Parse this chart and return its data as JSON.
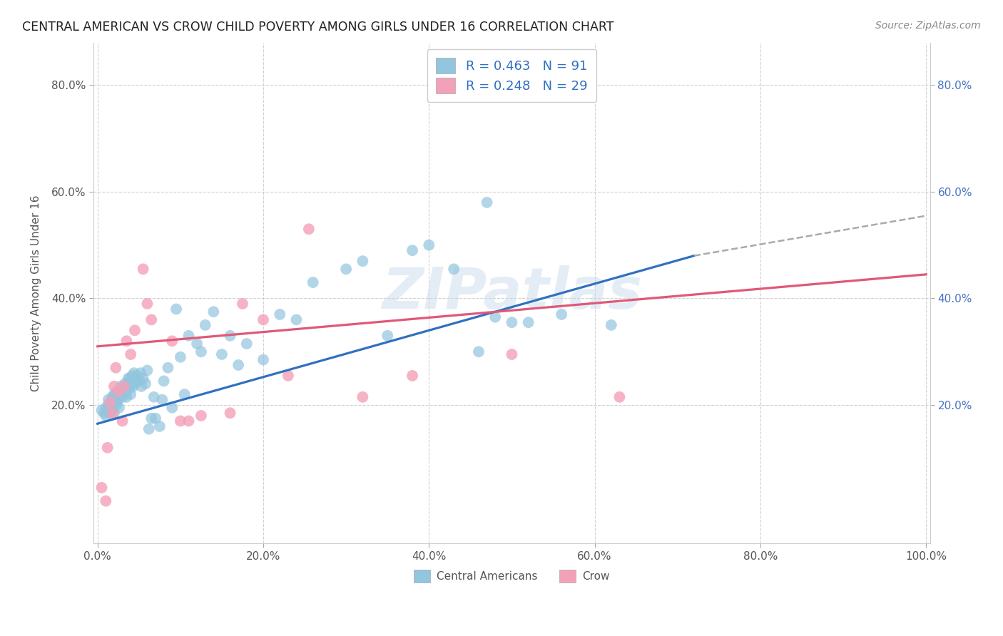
{
  "title": "CENTRAL AMERICAN VS CROW CHILD POVERTY AMONG GIRLS UNDER 16 CORRELATION CHART",
  "source": "Source: ZipAtlas.com",
  "ylabel": "Child Poverty Among Girls Under 16",
  "legend_label_1": "Central Americans",
  "legend_label_2": "Crow",
  "r1": 0.463,
  "n1": 91,
  "r2": 0.248,
  "n2": 29,
  "color_blue": "#92c5de",
  "color_pink": "#f4a0b8",
  "color_blue_line": "#3070c0",
  "color_pink_line": "#e05878",
  "color_blue_text": "#3070c0",
  "background": "#ffffff",
  "grid_color": "#cccccc",
  "watermark": "ZIPatlas",
  "blue_scatter_x": [
    0.005,
    0.008,
    0.01,
    0.01,
    0.012,
    0.013,
    0.013,
    0.015,
    0.015,
    0.016,
    0.018,
    0.018,
    0.019,
    0.02,
    0.02,
    0.02,
    0.022,
    0.022,
    0.023,
    0.023,
    0.025,
    0.025,
    0.026,
    0.027,
    0.028,
    0.028,
    0.03,
    0.03,
    0.031,
    0.032,
    0.033,
    0.034,
    0.035,
    0.035,
    0.036,
    0.037,
    0.038,
    0.039,
    0.04,
    0.04,
    0.041,
    0.042,
    0.043,
    0.044,
    0.045,
    0.046,
    0.048,
    0.05,
    0.052,
    0.053,
    0.055,
    0.058,
    0.06,
    0.062,
    0.065,
    0.068,
    0.07,
    0.075,
    0.078,
    0.08,
    0.085,
    0.09,
    0.095,
    0.1,
    0.105,
    0.11,
    0.12,
    0.125,
    0.13,
    0.14,
    0.15,
    0.16,
    0.17,
    0.18,
    0.2,
    0.22,
    0.24,
    0.26,
    0.3,
    0.32,
    0.35,
    0.38,
    0.4,
    0.43,
    0.46,
    0.48,
    0.5,
    0.52,
    0.56,
    0.62,
    0.47
  ],
  "blue_scatter_y": [
    0.19,
    0.185,
    0.18,
    0.195,
    0.188,
    0.2,
    0.21,
    0.195,
    0.185,
    0.205,
    0.192,
    0.215,
    0.2,
    0.21,
    0.185,
    0.22,
    0.205,
    0.215,
    0.2,
    0.225,
    0.21,
    0.22,
    0.195,
    0.215,
    0.225,
    0.235,
    0.215,
    0.225,
    0.23,
    0.22,
    0.24,
    0.225,
    0.235,
    0.215,
    0.24,
    0.25,
    0.23,
    0.25,
    0.22,
    0.24,
    0.245,
    0.255,
    0.235,
    0.26,
    0.24,
    0.25,
    0.255,
    0.245,
    0.26,
    0.235,
    0.25,
    0.24,
    0.265,
    0.155,
    0.175,
    0.215,
    0.175,
    0.16,
    0.21,
    0.245,
    0.27,
    0.195,
    0.38,
    0.29,
    0.22,
    0.33,
    0.315,
    0.3,
    0.35,
    0.375,
    0.295,
    0.33,
    0.275,
    0.315,
    0.285,
    0.37,
    0.36,
    0.43,
    0.455,
    0.47,
    0.33,
    0.49,
    0.5,
    0.455,
    0.3,
    0.365,
    0.355,
    0.355,
    0.37,
    0.35,
    0.58
  ],
  "pink_scatter_x": [
    0.005,
    0.01,
    0.012,
    0.015,
    0.018,
    0.02,
    0.022,
    0.025,
    0.03,
    0.032,
    0.035,
    0.04,
    0.045,
    0.055,
    0.06,
    0.065,
    0.09,
    0.1,
    0.11,
    0.125,
    0.16,
    0.175,
    0.2,
    0.23,
    0.255,
    0.32,
    0.38,
    0.5,
    0.63
  ],
  "pink_scatter_y": [
    0.045,
    0.02,
    0.12,
    0.205,
    0.185,
    0.235,
    0.27,
    0.225,
    0.17,
    0.235,
    0.32,
    0.295,
    0.34,
    0.455,
    0.39,
    0.36,
    0.32,
    0.17,
    0.17,
    0.18,
    0.185,
    0.39,
    0.36,
    0.255,
    0.53,
    0.215,
    0.255,
    0.295,
    0.215
  ],
  "blue_line_x0": 0.0,
  "blue_line_x1": 0.72,
  "blue_line_y0": 0.165,
  "blue_line_y1": 0.48,
  "pink_line_x0": 0.0,
  "pink_line_x1": 1.0,
  "pink_line_y0": 0.31,
  "pink_line_y1": 0.445,
  "dash_line_x0": 0.72,
  "dash_line_x1": 1.0,
  "dash_line_y0": 0.48,
  "dash_line_y1": 0.555,
  "xlim": [
    -0.005,
    1.005
  ],
  "ylim": [
    -0.06,
    0.88
  ],
  "ytick_labels": [
    "20.0%",
    "40.0%",
    "60.0%",
    "80.0%"
  ],
  "ytick_values": [
    0.2,
    0.4,
    0.6,
    0.8
  ],
  "xtick_labels": [
    "0.0%",
    "20.0%",
    "40.0%",
    "60.0%",
    "80.0%",
    "100.0%"
  ],
  "xtick_values": [
    0.0,
    0.2,
    0.4,
    0.6,
    0.8,
    1.0
  ]
}
